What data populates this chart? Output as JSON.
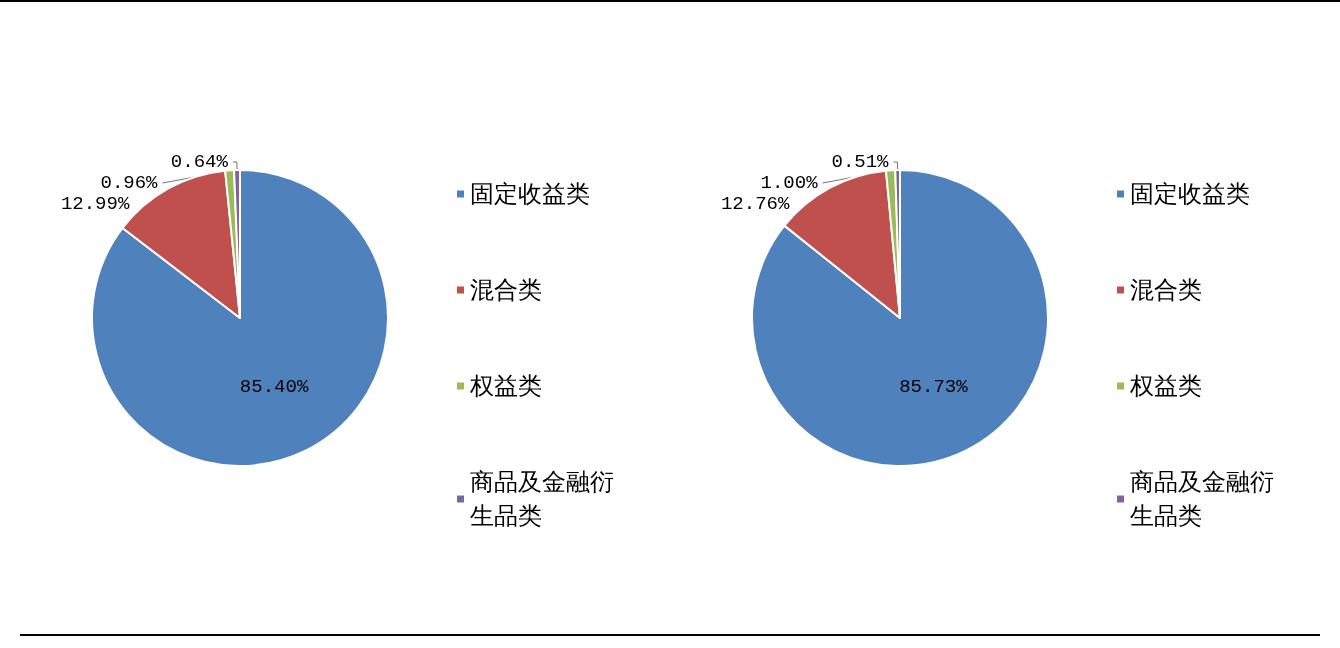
{
  "chart_data": [
    {
      "type": "pie",
      "categories": [
        "固定收益类",
        "混合类",
        "权益类",
        "商品及金融衍生品类"
      ],
      "values": [
        85.4,
        12.99,
        0.96,
        0.64
      ],
      "value_labels": [
        "85.40%",
        "12.99%",
        "0.96%",
        "0.64%"
      ],
      "colors": [
        "#4f81bd",
        "#c0504d",
        "#9bbb59",
        "#8064a2"
      ],
      "legend": "right"
    },
    {
      "type": "pie",
      "categories": [
        "固定收益类",
        "混合类",
        "权益类",
        "商品及金融衍生品类"
      ],
      "values": [
        85.73,
        12.76,
        1.0,
        0.51
      ],
      "value_labels": [
        "85.73%",
        "12.76%",
        "1.00%",
        "0.51%"
      ],
      "colors": [
        "#4f81bd",
        "#c0504d",
        "#9bbb59",
        "#8064a2"
      ],
      "legend": "right"
    }
  ]
}
